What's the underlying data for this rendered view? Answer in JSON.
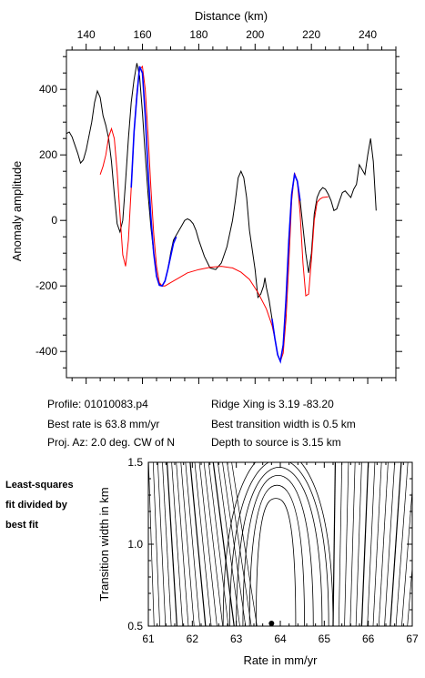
{
  "chart_data": [
    {
      "type": "line",
      "title": "Distance (km)",
      "xlabel": "Distance (km)",
      "ylabel": "Anomaly amplitude",
      "xlim": [
        133,
        250
      ],
      "ylim": [
        -480,
        520
      ],
      "xticks": [
        140,
        160,
        180,
        200,
        220,
        240
      ],
      "yticks": [
        -400,
        -200,
        0,
        200,
        400
      ],
      "grid": false,
      "series": [
        {
          "color": "#000000",
          "points": [
            [
              133,
              265
            ],
            [
              134,
              270
            ],
            [
              135,
              255
            ],
            [
              137,
              205
            ],
            [
              138,
              175
            ],
            [
              139,
              185
            ],
            [
              140,
              215
            ],
            [
              142,
              300
            ],
            [
              143,
              360
            ],
            [
              144,
              395
            ],
            [
              145,
              375
            ],
            [
              146,
              320
            ],
            [
              147,
              290
            ],
            [
              148,
              250
            ],
            [
              149,
              180
            ],
            [
              150,
              80
            ],
            [
              151,
              -10
            ],
            [
              152,
              -35
            ],
            [
              153,
              0
            ],
            [
              154,
              120
            ],
            [
              155,
              250
            ],
            [
              156,
              360
            ],
            [
              157,
              430
            ],
            [
              158,
              480
            ],
            [
              159,
              440
            ],
            [
              160,
              330
            ],
            [
              161,
              200
            ],
            [
              162,
              80
            ],
            [
              163,
              -20
            ],
            [
              164,
              -100
            ],
            [
              165,
              -170
            ],
            [
              166,
              -195
            ],
            [
              167,
              -200
            ],
            [
              168,
              -185
            ],
            [
              169,
              -150
            ],
            [
              170,
              -100
            ],
            [
              171,
              -60
            ],
            [
              172,
              -45
            ],
            [
              173,
              -30
            ],
            [
              174,
              -15
            ],
            [
              175,
              0
            ],
            [
              176,
              5
            ],
            [
              177,
              0
            ],
            [
              178,
              -10
            ],
            [
              179,
              -30
            ],
            [
              180,
              -60
            ],
            [
              182,
              -110
            ],
            [
              184,
              -145
            ],
            [
              186,
              -150
            ],
            [
              188,
              -130
            ],
            [
              190,
              -80
            ],
            [
              192,
              0
            ],
            [
              193,
              60
            ],
            [
              194,
              130
            ],
            [
              195,
              150
            ],
            [
              196,
              130
            ],
            [
              197,
              70
            ],
            [
              198,
              -30
            ],
            [
              200,
              -150
            ],
            [
              201,
              -235
            ],
            [
              202,
              -225
            ],
            [
              203,
              -200
            ],
            [
              203.5,
              -175
            ],
            [
              204,
              -205
            ],
            [
              205,
              -245
            ],
            [
              206,
              -300
            ],
            [
              207,
              -360
            ],
            [
              208,
              -410
            ],
            [
              209,
              -430
            ],
            [
              210,
              -380
            ],
            [
              211,
              -240
            ],
            [
              212,
              -60
            ],
            [
              213,
              80
            ],
            [
              214,
              140
            ],
            [
              215,
              120
            ],
            [
              216,
              60
            ],
            [
              217,
              -20
            ],
            [
              218,
              -100
            ],
            [
              219,
              -160
            ],
            [
              220,
              -100
            ],
            [
              221,
              20
            ],
            [
              222,
              70
            ],
            [
              223,
              90
            ],
            [
              224,
              100
            ],
            [
              225,
              95
            ],
            [
              226,
              80
            ],
            [
              227,
              60
            ],
            [
              228,
              30
            ],
            [
              229,
              35
            ],
            [
              230,
              60
            ],
            [
              231,
              85
            ],
            [
              232,
              90
            ],
            [
              233,
              80
            ],
            [
              234,
              70
            ],
            [
              235,
              95
            ],
            [
              236,
              110
            ],
            [
              237,
              170
            ],
            [
              238,
              155
            ],
            [
              239,
              140
            ],
            [
              240,
              200
            ],
            [
              241,
              250
            ],
            [
              242,
              180
            ],
            [
              243,
              30
            ]
          ]
        },
        {
          "color": "#ff0000",
          "points": [
            [
              145,
              140
            ],
            [
              146,
              165
            ],
            [
              147,
              200
            ],
            [
              148,
              255
            ],
            [
              149,
              280
            ],
            [
              150,
              250
            ],
            [
              151,
              150
            ],
            [
              152,
              20
            ],
            [
              153,
              -105
            ],
            [
              154,
              -140
            ],
            [
              155,
              -60
            ],
            [
              156,
              100
            ],
            [
              157,
              270
            ],
            [
              158,
              390
            ],
            [
              159,
              460
            ],
            [
              160,
              470
            ],
            [
              161,
              400
            ],
            [
              162,
              260
            ],
            [
              163,
              100
            ],
            [
              164,
              -40
            ],
            [
              165,
              -140
            ],
            [
              166,
              -190
            ],
            [
              167,
              -200
            ],
            [
              168,
              -200
            ],
            [
              170,
              -190
            ],
            [
              173,
              -175
            ],
            [
              176,
              -160
            ],
            [
              180,
              -150
            ],
            [
              184,
              -143
            ],
            [
              188,
              -140
            ],
            [
              192,
              -145
            ],
            [
              195,
              -158
            ],
            [
              198,
              -180
            ],
            [
              201,
              -220
            ],
            [
              204,
              -270
            ],
            [
              206,
              -320
            ],
            [
              207,
              -360
            ],
            [
              208,
              -410
            ],
            [
              209,
              -430
            ],
            [
              210,
              -405
            ],
            [
              211,
              -300
            ],
            [
              212,
              -130
            ],
            [
              213,
              60
            ],
            [
              214,
              145
            ],
            [
              215,
              120
            ],
            [
              216,
              20
            ],
            [
              217,
              -130
            ],
            [
              218,
              -230
            ],
            [
              219,
              -225
            ],
            [
              220,
              -120
            ],
            [
              221,
              0
            ],
            [
              222,
              55
            ],
            [
              223,
              65
            ],
            [
              224,
              70
            ],
            [
              226,
              72
            ]
          ]
        },
        {
          "color": "#0000ff",
          "points": [
            [
              156,
              100
            ],
            [
              157,
              270
            ],
            [
              158,
              380
            ],
            [
              159,
              470
            ],
            [
              160,
              450
            ],
            [
              161,
              320
            ],
            [
              162,
              150
            ],
            [
              163,
              10
            ],
            [
              164,
              -100
            ],
            [
              165,
              -170
            ],
            [
              166,
              -198
            ],
            [
              167,
              -200
            ],
            [
              168,
              -185
            ],
            [
              169,
              -150
            ],
            [
              170,
              -110
            ],
            [
              171,
              -70
            ],
            [
              172,
              -50
            ]
          ]
        },
        {
          "color": "#0000ff",
          "points": [
            [
              206,
              -300
            ],
            [
              207,
              -360
            ],
            [
              208,
              -410
            ],
            [
              209,
              -430
            ],
            [
              210,
              -380
            ],
            [
              211,
              -240
            ],
            [
              212,
              -60
            ],
            [
              213,
              80
            ],
            [
              214,
              140
            ],
            [
              215,
              120
            ],
            [
              216,
              60
            ]
          ]
        }
      ]
    },
    {
      "type": "contour",
      "xlabel": "Rate in mm/yr",
      "ylabel": "Transition width in km",
      "xlim": [
        61,
        67
      ],
      "ylim": [
        0.5,
        1.5
      ],
      "xticks": [
        "61",
        "62",
        "63",
        "64",
        "65",
        "66",
        "67"
      ],
      "yticks": [
        "0.5",
        "1.0",
        "1.5"
      ],
      "best_fit_point": {
        "x": 63.8,
        "y": 0.5
      },
      "contour_color": "#000000"
    }
  ],
  "axes_text": {
    "top_xlabel": "Distance (km)",
    "top_ylabel": "Anomaly amplitude",
    "top_xticks": [
      "140",
      "160",
      "180",
      "200",
      "220",
      "240"
    ],
    "top_yticks": [
      "400",
      "200",
      "0",
      "-200",
      "-400"
    ],
    "bottom_xlabel": "Rate in mm/yr",
    "bottom_ylabel": "Transition width in km"
  },
  "info": {
    "profile": "Profile: 01010083.p4",
    "best_rate": "Best rate is 63.8 mm/yr",
    "proj_az": "Proj. Az: 2.0 deg. CW of N",
    "ridge_xing": "Ridge Xing is 3.19 -83.20",
    "best_transition": "Best transition width is 0.5 km",
    "depth": "Depth to source is   3.15 km"
  },
  "side_label": [
    "Least-squares",
    "fit divided by",
    "best fit"
  ]
}
